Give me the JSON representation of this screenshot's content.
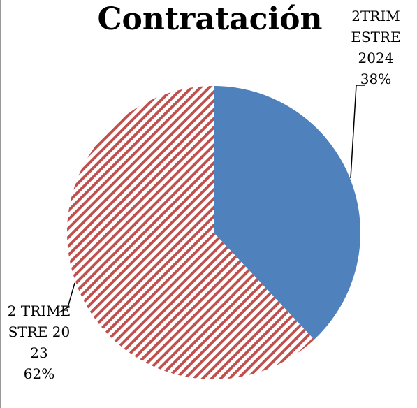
{
  "chart_data": {
    "type": "pie",
    "title": "Contratación",
    "categories": [
      "2TRIMESTRE 2024",
      "2 TRIMESTRE 2023"
    ],
    "values": [
      38,
      62
    ],
    "value_labels": [
      "38%",
      "62%"
    ],
    "colors": [
      "#4f81bd",
      "#c0504d"
    ]
  }
}
